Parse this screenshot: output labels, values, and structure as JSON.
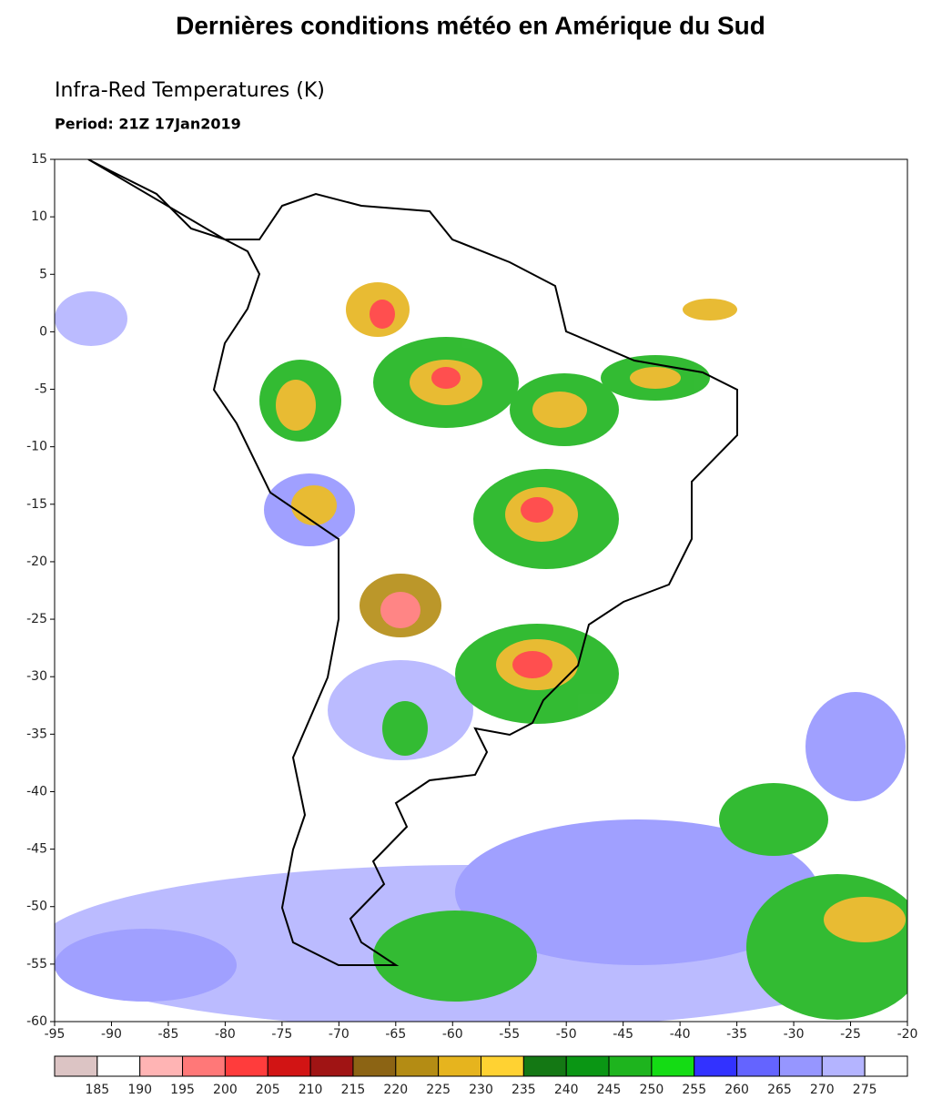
{
  "header": {
    "title": "Dernières conditions météo en Amérique du Sud",
    "subtitle": "Infra-Red Temperatures (K)",
    "period": "Period: 21Z 17Jan2019"
  },
  "map": {
    "lon_range": [
      -95,
      -20
    ],
    "lat_range": [
      -60,
      15
    ],
    "lon_ticks": [
      -95,
      -90,
      -85,
      -80,
      -75,
      -70,
      -65,
      -60,
      -55,
      -50,
      -45,
      -40,
      -35,
      -30,
      -25,
      -20
    ],
    "lat_ticks": [
      15,
      10,
      5,
      0,
      -5,
      -10,
      -15,
      -20,
      -25,
      -30,
      -35,
      -40,
      -45,
      -50,
      -55,
      -60
    ]
  },
  "colorbar": {
    "colors": [
      "#dcc4c4",
      "#ffffff",
      "#ffb4b4",
      "#ff7878",
      "#ff3c3c",
      "#d21414",
      "#a01414",
      "#8c6414",
      "#b48c14",
      "#e6b41e",
      "#ffd232",
      "#147814",
      "#0a9614",
      "#1eb41e",
      "#14dc14",
      "#3232ff",
      "#6464ff",
      "#9696ff",
      "#b4b4ff",
      "#ffffff"
    ],
    "labels": [
      185,
      190,
      195,
      200,
      205,
      210,
      215,
      220,
      225,
      230,
      235,
      240,
      245,
      250,
      255,
      260,
      265,
      270,
      275
    ]
  }
}
